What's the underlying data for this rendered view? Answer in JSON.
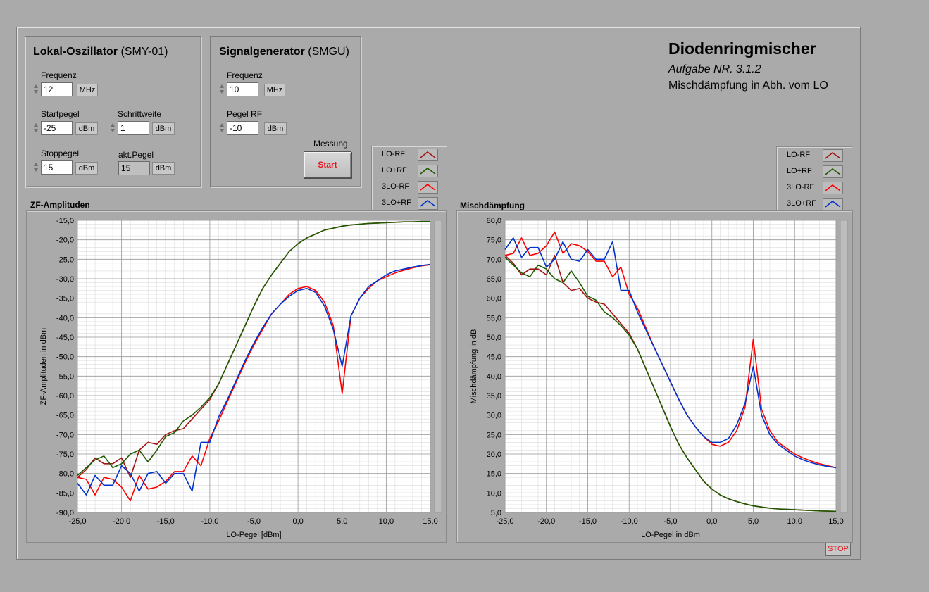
{
  "lo": {
    "title_bold": "Lokal-Oszillator",
    "title_light": "(SMY-01)",
    "freq_label": "Frequenz",
    "freq_value": "12",
    "freq_unit": "MHz",
    "start_label": "Startpegel",
    "start_value": "-25",
    "start_unit": "dBm",
    "step_label": "Schrittweite",
    "step_value": "1",
    "step_unit": "dBm",
    "stop_label": "Stoppegel",
    "stop_value": "15",
    "stop_unit": "dBm",
    "akt_label": "akt.Pegel",
    "akt_value": "15",
    "akt_unit": "dBm"
  },
  "sg": {
    "title_bold": "Signalgenerator",
    "title_light": "(SMGU)",
    "freq_label": "Frequenz",
    "freq_value": "10",
    "freq_unit": "MHz",
    "pegel_label": "Pegel RF",
    "pegel_value": "-10",
    "pegel_unit": "dBm",
    "messung_label": "Messung",
    "start_button": "Start"
  },
  "header": {
    "title": "Diodenringmischer",
    "subtitle": "Aufgabe NR. 3.1.2",
    "subtitle2": "Mischdämpfung in Abh. vom LO"
  },
  "stop_button": "STOP",
  "legend": [
    {
      "name": "LO-RF",
      "color": "#a31515"
    },
    {
      "name": "LO+RF",
      "color": "#1f5a00"
    },
    {
      "name": "3LO-RF",
      "color": "#ff0000"
    },
    {
      "name": "3LO+RF",
      "color": "#0033cc"
    }
  ],
  "chart_data": [
    {
      "type": "line",
      "title": "ZF-Amplituden",
      "xlabel": "LO-Pegel [dBm]",
      "ylabel": "ZF-Amplituden in dBm",
      "xlim": [
        -25,
        15
      ],
      "ylim": [
        -90,
        -15
      ],
      "xticks": [
        -25,
        -20,
        -15,
        -10,
        -5,
        0,
        5,
        10,
        15
      ],
      "yticks": [
        -90,
        -85,
        -80,
        -75,
        -70,
        -65,
        -60,
        -55,
        -50,
        -45,
        -40,
        -35,
        -30,
        -25,
        -20,
        -15
      ],
      "tick_decimals": 1,
      "grid": true,
      "legend_position": "top-right",
      "x": [
        -25,
        -24,
        -23,
        -22,
        -21,
        -20,
        -19,
        -18,
        -17,
        -16,
        -15,
        -14,
        -13,
        -12,
        -11,
        -10,
        -9,
        -8,
        -7,
        -6,
        -5,
        -4,
        -3,
        -2,
        -1,
        0,
        1,
        2,
        3,
        4,
        5,
        6,
        7,
        8,
        9,
        10,
        11,
        12,
        13,
        14,
        15
      ],
      "series": [
        {
          "name": "LO-RF",
          "color": "#a31515",
          "values": [
            -81,
            -79,
            -76,
            -77.5,
            -77.5,
            -76,
            -81,
            -74,
            -72,
            -72.5,
            -70,
            -69,
            -68.5,
            -66,
            -63.5,
            -61,
            -57,
            -52,
            -47,
            -42,
            -37,
            -32.5,
            -29,
            -26,
            -23,
            -21,
            -19.5,
            -18.5,
            -17.5,
            -17,
            -16.5,
            -16.2,
            -16,
            -15.8,
            -15.7,
            -15.6,
            -15.5,
            -15.4,
            -15.4,
            -15.3,
            -15.3
          ]
        },
        {
          "name": "LO+RF",
          "color": "#1f5a00",
          "values": [
            -80.5,
            -78.5,
            -76.5,
            -75.5,
            -78.5,
            -77.5,
            -75,
            -74,
            -77,
            -74,
            -70.5,
            -69.5,
            -66.5,
            -65,
            -63,
            -60.5,
            -57,
            -52,
            -47,
            -42,
            -37,
            -32.5,
            -29,
            -26,
            -23,
            -21,
            -19.5,
            -18.5,
            -17.5,
            -17,
            -16.5,
            -16.2,
            -16,
            -15.8,
            -15.7,
            -15.6,
            -15.5,
            -15.4,
            -15.4,
            -15.3,
            -15.3
          ]
        },
        {
          "name": "3LO-RF",
          "color": "#ff0000",
          "values": [
            -81,
            -81.5,
            -85.5,
            -81,
            -81.5,
            -83.5,
            -87,
            -80.5,
            -84,
            -83.5,
            -82,
            -79.5,
            -79.5,
            -75.5,
            -78,
            -71,
            -66.5,
            -61.5,
            -56.5,
            -51.5,
            -47,
            -43,
            -39,
            -36.5,
            -34,
            -32.5,
            -32,
            -33,
            -36,
            -42,
            -59.5,
            -39.5,
            -35,
            -32.5,
            -30.5,
            -29.5,
            -28.5,
            -27.8,
            -27.2,
            -26.7,
            -26.4
          ]
        },
        {
          "name": "3LO+RF",
          "color": "#0033cc",
          "values": [
            -82.5,
            -85.5,
            -80.5,
            -83,
            -83,
            -78,
            -80,
            -84.5,
            -80,
            -79.5,
            -82.5,
            -80,
            -80,
            -84.5,
            -72,
            -72,
            -65.5,
            -61,
            -56,
            -51,
            -46.5,
            -42.5,
            -39,
            -36.5,
            -34.5,
            -33,
            -32.5,
            -33.5,
            -37,
            -43,
            -52.5,
            -39.5,
            -35,
            -32,
            -30.5,
            -29,
            -28,
            -27.5,
            -27,
            -26.6,
            -26.3
          ]
        }
      ]
    },
    {
      "type": "line",
      "title": "Mischdämpfung",
      "xlabel": "LO-Pegel in dBm",
      "ylabel": "Mischdämpfung in dB",
      "xlim": [
        -25,
        15
      ],
      "ylim": [
        5,
        80
      ],
      "xticks": [
        -25,
        -20,
        -15,
        -10,
        -5,
        0,
        5,
        10,
        15
      ],
      "yticks": [
        5,
        10,
        15,
        20,
        25,
        30,
        35,
        40,
        45,
        50,
        55,
        60,
        65,
        70,
        75,
        80
      ],
      "tick_decimals": 1,
      "grid": true,
      "legend_position": "top-right",
      "x": [
        -25,
        -24,
        -23,
        -22,
        -21,
        -20,
        -19,
        -18,
        -17,
        -16,
        -15,
        -14,
        -13,
        -12,
        -11,
        -10,
        -9,
        -8,
        -7,
        -6,
        -5,
        -4,
        -3,
        -2,
        -1,
        0,
        1,
        2,
        3,
        4,
        5,
        6,
        7,
        8,
        9,
        10,
        11,
        12,
        13,
        14,
        15
      ],
      "series": [
        {
          "name": "LO-RF",
          "color": "#a31515",
          "values": [
            71,
            69,
            66,
            67.5,
            67.5,
            66,
            71,
            64,
            62,
            62.5,
            60,
            59,
            58.5,
            56,
            53.5,
            51,
            47,
            42,
            37,
            32,
            27,
            22.5,
            19,
            16,
            13,
            11,
            9.5,
            8.5,
            7.8,
            7.2,
            6.7,
            6.4,
            6.1,
            5.9,
            5.8,
            5.7,
            5.6,
            5.5,
            5.4,
            5.35,
            5.3
          ]
        },
        {
          "name": "LO+RF",
          "color": "#1f5a00",
          "values": [
            70.5,
            68.5,
            66.5,
            65.5,
            68.5,
            67.5,
            65,
            64,
            67,
            64,
            60.5,
            59.5,
            56.5,
            55,
            53,
            50.5,
            47,
            42,
            37,
            32,
            27,
            22.5,
            19,
            16,
            13,
            11,
            9.5,
            8.5,
            7.8,
            7.2,
            6.7,
            6.4,
            6.1,
            5.9,
            5.8,
            5.7,
            5.6,
            5.5,
            5.4,
            5.35,
            5.3
          ]
        },
        {
          "name": "3LO-RF",
          "color": "#ff0000",
          "values": [
            71,
            71.5,
            75.5,
            71,
            71.5,
            73.5,
            77,
            71.5,
            74,
            73.5,
            72,
            69.5,
            69.5,
            65.5,
            68,
            61,
            57.5,
            52.5,
            47.5,
            43,
            38.5,
            34,
            30,
            27,
            24.5,
            22.5,
            22,
            23,
            26,
            32,
            49.5,
            31.5,
            26,
            23,
            21.5,
            20,
            19,
            18.2,
            17.5,
            17,
            16.5
          ]
        },
        {
          "name": "3LO+RF",
          "color": "#0033cc",
          "values": [
            72.5,
            75.5,
            70.5,
            73,
            73,
            68,
            70,
            74.5,
            70,
            69.5,
            72.5,
            70,
            70,
            74.5,
            62,
            62,
            56.5,
            52,
            47.5,
            43,
            38.5,
            34,
            30,
            27,
            24.5,
            23,
            23,
            24,
            27.5,
            33,
            42.5,
            30,
            25,
            22.5,
            21,
            19.5,
            18.5,
            17.8,
            17.2,
            16.8,
            16.5
          ]
        }
      ]
    }
  ]
}
